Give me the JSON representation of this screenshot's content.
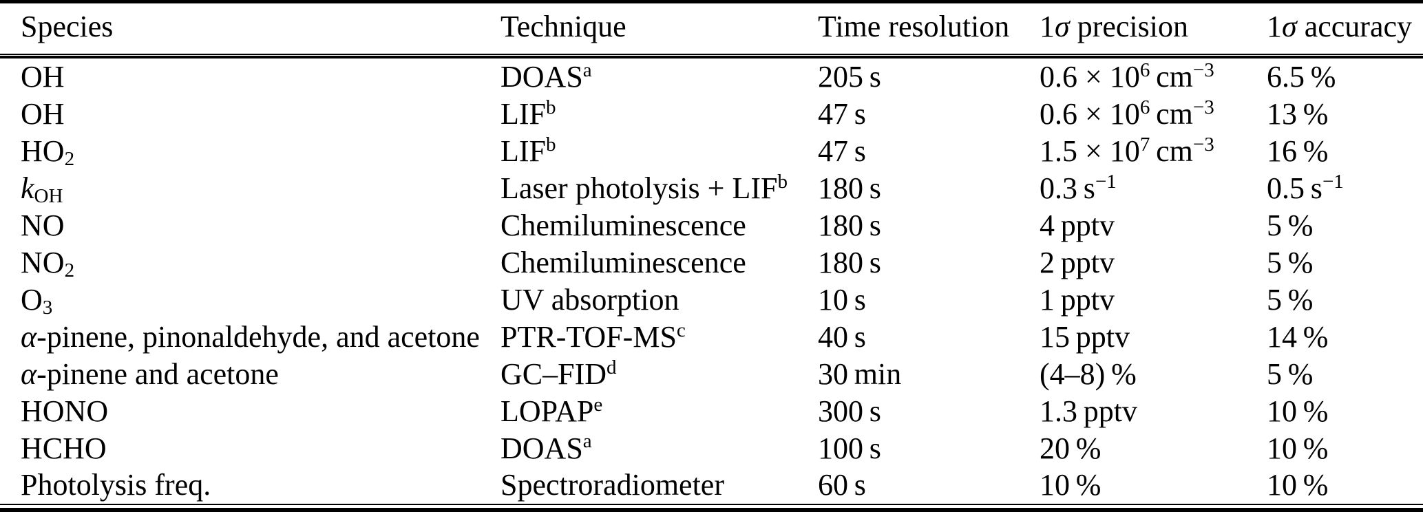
{
  "colors": {
    "background": "#ffffff",
    "text": "#000000",
    "rules": "#000000"
  },
  "table": {
    "columns": [
      {
        "key": "species",
        "label_runs": [
          {
            "t": "Species"
          }
        ]
      },
      {
        "key": "technique",
        "label_runs": [
          {
            "t": "Technique"
          }
        ]
      },
      {
        "key": "time-resolution",
        "label_runs": [
          {
            "t": "Time resolution"
          }
        ]
      },
      {
        "key": "precision",
        "label_runs": [
          {
            "t": "1"
          },
          {
            "t": "σ",
            "i": true
          },
          {
            "t": " precision"
          }
        ]
      },
      {
        "key": "accuracy",
        "label_runs": [
          {
            "t": "1"
          },
          {
            "t": "σ",
            "i": true
          },
          {
            "t": " accuracy"
          }
        ]
      }
    ],
    "rows": [
      {
        "cells": [
          [
            {
              "t": "OH"
            }
          ],
          [
            {
              "t": "DOAS"
            },
            {
              "t": "a",
              "sup": true
            }
          ],
          [
            {
              "t": "205 s"
            }
          ],
          [
            {
              "t": "0.6 × 10"
            },
            {
              "t": "6",
              "sup": true
            },
            {
              "t": " cm"
            },
            {
              "t": "−3",
              "sup": true
            }
          ],
          [
            {
              "t": "6.5 %"
            }
          ]
        ]
      },
      {
        "cells": [
          [
            {
              "t": "OH"
            }
          ],
          [
            {
              "t": "LIF"
            },
            {
              "t": "b",
              "sup": true
            }
          ],
          [
            {
              "t": "47 s"
            }
          ],
          [
            {
              "t": "0.6 × 10"
            },
            {
              "t": "6",
              "sup": true
            },
            {
              "t": " cm"
            },
            {
              "t": "−3",
              "sup": true
            }
          ],
          [
            {
              "t": "13 %"
            }
          ]
        ]
      },
      {
        "cells": [
          [
            {
              "t": "HO"
            },
            {
              "t": "2",
              "sub": true
            }
          ],
          [
            {
              "t": "LIF"
            },
            {
              "t": "b",
              "sup": true
            }
          ],
          [
            {
              "t": "47 s"
            }
          ],
          [
            {
              "t": "1.5 × 10"
            },
            {
              "t": "7",
              "sup": true
            },
            {
              "t": " cm"
            },
            {
              "t": "−3",
              "sup": true
            }
          ],
          [
            {
              "t": "16 %"
            }
          ]
        ]
      },
      {
        "cells": [
          [
            {
              "t": "k",
              "i": true
            },
            {
              "t": "OH",
              "sub": true
            }
          ],
          [
            {
              "t": "Laser photolysis + LIF"
            },
            {
              "t": "b",
              "sup": true
            }
          ],
          [
            {
              "t": "180 s"
            }
          ],
          [
            {
              "t": "0.3 s"
            },
            {
              "t": "−1",
              "sup": true
            }
          ],
          [
            {
              "t": "0.5 s"
            },
            {
              "t": "−1",
              "sup": true
            }
          ]
        ]
      },
      {
        "cells": [
          [
            {
              "t": "NO"
            }
          ],
          [
            {
              "t": "Chemiluminescence"
            }
          ],
          [
            {
              "t": "180 s"
            }
          ],
          [
            {
              "t": "4 pptv"
            }
          ],
          [
            {
              "t": "5 %"
            }
          ]
        ]
      },
      {
        "cells": [
          [
            {
              "t": "NO"
            },
            {
              "t": "2",
              "sub": true
            }
          ],
          [
            {
              "t": "Chemiluminescence"
            }
          ],
          [
            {
              "t": "180 s"
            }
          ],
          [
            {
              "t": "2 pptv"
            }
          ],
          [
            {
              "t": "5 %"
            }
          ]
        ]
      },
      {
        "cells": [
          [
            {
              "t": "O"
            },
            {
              "t": "3",
              "sub": true
            }
          ],
          [
            {
              "t": "UV absorption"
            }
          ],
          [
            {
              "t": "10 s"
            }
          ],
          [
            {
              "t": "1 pptv"
            }
          ],
          [
            {
              "t": "5 %"
            }
          ]
        ]
      },
      {
        "cells": [
          [
            {
              "t": "α",
              "i": true
            },
            {
              "t": "-pinene, pinonaldehyde, and acetone"
            }
          ],
          [
            {
              "t": "PTR-TOF-MS"
            },
            {
              "t": "c",
              "sup": true
            }
          ],
          [
            {
              "t": "40 s"
            }
          ],
          [
            {
              "t": "15 pptv"
            }
          ],
          [
            {
              "t": "14 %"
            }
          ]
        ]
      },
      {
        "cells": [
          [
            {
              "t": "α",
              "i": true
            },
            {
              "t": "-pinene and acetone"
            }
          ],
          [
            {
              "t": "GC–FID"
            },
            {
              "t": "d",
              "sup": true
            }
          ],
          [
            {
              "t": "30 min"
            }
          ],
          [
            {
              "t": "(4–8) %"
            }
          ],
          [
            {
              "t": "5 %"
            }
          ]
        ]
      },
      {
        "cells": [
          [
            {
              "t": "HONO"
            }
          ],
          [
            {
              "t": "LOPAP"
            },
            {
              "t": "e",
              "sup": true
            }
          ],
          [
            {
              "t": "300 s"
            }
          ],
          [
            {
              "t": "1.3 pptv"
            }
          ],
          [
            {
              "t": "10 %"
            }
          ]
        ]
      },
      {
        "cells": [
          [
            {
              "t": "HCHO"
            }
          ],
          [
            {
              "t": "DOAS"
            },
            {
              "t": "a",
              "sup": true
            }
          ],
          [
            {
              "t": "100 s"
            }
          ],
          [
            {
              "t": "20 %"
            }
          ],
          [
            {
              "t": "10 %"
            }
          ]
        ]
      },
      {
        "cells": [
          [
            {
              "t": "Photolysis freq."
            }
          ],
          [
            {
              "t": "Spectroradiometer"
            }
          ],
          [
            {
              "t": "60 s"
            }
          ],
          [
            {
              "t": "10 %"
            }
          ],
          [
            {
              "t": "10 %"
            }
          ]
        ]
      }
    ]
  }
}
